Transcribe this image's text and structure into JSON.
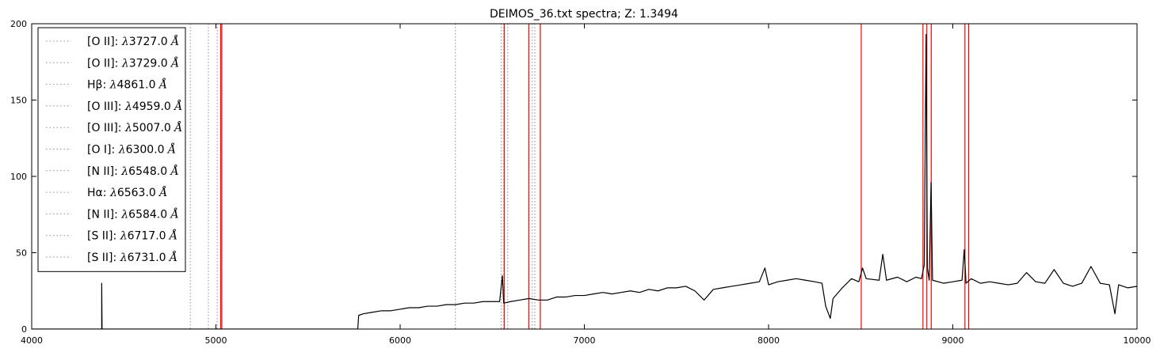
{
  "chart_data": {
    "type": "line",
    "title": "DEIMOS_36.txt spectra; Z: 1.3494",
    "xlabel": "",
    "ylabel": "",
    "xlim": [
      4000,
      10000
    ],
    "ylim": [
      0,
      200
    ],
    "x_ticks": [
      4000,
      5000,
      6000,
      7000,
      8000,
      9000,
      10000
    ],
    "y_ticks": [
      0,
      50,
      100,
      150,
      200
    ],
    "x_tick_labels": [
      "4000",
      "5000",
      "6000",
      "7000",
      "8000",
      "9000",
      "10000"
    ],
    "y_tick_labels": [
      "0",
      "50",
      "100",
      "150",
      "200"
    ],
    "grid": false,
    "legend_position": "top-left",
    "colors": {
      "spectrum": "#000000",
      "observed_lines": "#ff0000",
      "rest_lines": "#8c8c8c"
    },
    "series": [
      {
        "name": "",
        "points": [
          [
            4000,
            0
          ],
          [
            4380,
            0
          ],
          [
            4380,
            30
          ],
          [
            4382,
            0
          ],
          [
            5770,
            0
          ],
          [
            5775,
            9
          ],
          [
            5800,
            10
          ],
          [
            5850,
            11
          ],
          [
            5900,
            12
          ],
          [
            5950,
            12
          ],
          [
            6000,
            13
          ],
          [
            6050,
            14
          ],
          [
            6100,
            14
          ],
          [
            6150,
            15
          ],
          [
            6200,
            15
          ],
          [
            6250,
            16
          ],
          [
            6300,
            16
          ],
          [
            6350,
            17
          ],
          [
            6400,
            17
          ],
          [
            6450,
            18
          ],
          [
            6500,
            18
          ],
          [
            6540,
            18
          ],
          [
            6555,
            35
          ],
          [
            6562,
            17
          ],
          [
            6600,
            18
          ],
          [
            6650,
            19
          ],
          [
            6700,
            20
          ],
          [
            6750,
            19
          ],
          [
            6800,
            19
          ],
          [
            6850,
            21
          ],
          [
            6900,
            21
          ],
          [
            6950,
            22
          ],
          [
            7000,
            22
          ],
          [
            7050,
            23
          ],
          [
            7100,
            24
          ],
          [
            7150,
            23
          ],
          [
            7200,
            24
          ],
          [
            7250,
            25
          ],
          [
            7300,
            24
          ],
          [
            7350,
            26
          ],
          [
            7400,
            25
          ],
          [
            7450,
            27
          ],
          [
            7500,
            27
          ],
          [
            7550,
            28
          ],
          [
            7600,
            25
          ],
          [
            7650,
            19
          ],
          [
            7700,
            26
          ],
          [
            7750,
            27
          ],
          [
            7800,
            28
          ],
          [
            7850,
            29
          ],
          [
            7900,
            30
          ],
          [
            7950,
            31
          ],
          [
            7980,
            40
          ],
          [
            8000,
            29
          ],
          [
            8050,
            31
          ],
          [
            8100,
            32
          ],
          [
            8150,
            33
          ],
          [
            8200,
            32
          ],
          [
            8250,
            31
          ],
          [
            8290,
            30
          ],
          [
            8310,
            15
          ],
          [
            8335,
            7
          ],
          [
            8350,
            20
          ],
          [
            8400,
            27
          ],
          [
            8450,
            33
          ],
          [
            8490,
            31
          ],
          [
            8510,
            40
          ],
          [
            8530,
            33
          ],
          [
            8600,
            32
          ],
          [
            8620,
            49
          ],
          [
            8640,
            32
          ],
          [
            8700,
            34
          ],
          [
            8750,
            31
          ],
          [
            8800,
            34
          ],
          [
            8830,
            33
          ],
          [
            8845,
            42
          ],
          [
            8855,
            193
          ],
          [
            8862,
            40
          ],
          [
            8872,
            32
          ],
          [
            8882,
            96
          ],
          [
            8890,
            32
          ],
          [
            8950,
            30
          ],
          [
            9000,
            31
          ],
          [
            9050,
            32
          ],
          [
            9062,
            52
          ],
          [
            9072,
            30
          ],
          [
            9100,
            33
          ],
          [
            9150,
            30
          ],
          [
            9200,
            31
          ],
          [
            9250,
            30
          ],
          [
            9300,
            29
          ],
          [
            9350,
            30
          ],
          [
            9400,
            37
          ],
          [
            9450,
            31
          ],
          [
            9500,
            30
          ],
          [
            9550,
            39
          ],
          [
            9600,
            30
          ],
          [
            9650,
            28
          ],
          [
            9700,
            30
          ],
          [
            9750,
            41
          ],
          [
            9800,
            30
          ],
          [
            9850,
            29
          ],
          [
            9880,
            10
          ],
          [
            9900,
            29
          ],
          [
            9950,
            27
          ],
          [
            10000,
            28
          ]
        ]
      }
    ],
    "observed_line_positions": [
      5026,
      5032,
      6565,
      6699,
      6761,
      8503,
      8838,
      8859,
      8883,
      9066,
      9086
    ],
    "rest_line_positions": [
      4861,
      4959,
      5007,
      6300,
      6548,
      6563,
      6584,
      6717,
      6731
    ],
    "legend": [
      {
        "ion": "[O II]",
        "sep": ": ",
        "lambda": "λ",
        "wave": "3727.0",
        "unit": "Å"
      },
      {
        "ion": "[O II]",
        "sep": ": ",
        "lambda": "λ",
        "wave": "3729.0",
        "unit": "Å"
      },
      {
        "ion": "Hβ",
        "sep": ": ",
        "lambda": "λ",
        "wave": "4861.0",
        "unit": "Å"
      },
      {
        "ion": "[O III]",
        "sep": ": ",
        "lambda": "λ",
        "wave": "4959.0",
        "unit": "Å"
      },
      {
        "ion": "[O III]",
        "sep": ": ",
        "lambda": "λ",
        "wave": "5007.0",
        "unit": "Å"
      },
      {
        "ion": "[O I]",
        "sep": ": ",
        "lambda": "λ",
        "wave": "6300.0",
        "unit": "Å"
      },
      {
        "ion": "[N II]",
        "sep": ": ",
        "lambda": "λ",
        "wave": "6548.0",
        "unit": "Å"
      },
      {
        "ion": "Hα",
        "sep": ": ",
        "lambda": "λ",
        "wave": "6563.0",
        "unit": "Å"
      },
      {
        "ion": "[N II]",
        "sep": ": ",
        "lambda": "λ",
        "wave": "6584.0",
        "unit": "Å"
      },
      {
        "ion": "[S II]",
        "sep": ": ",
        "lambda": "λ",
        "wave": "6717.0",
        "unit": "Å"
      },
      {
        "ion": "[S II]",
        "sep": ": ",
        "lambda": "λ",
        "wave": "6731.0",
        "unit": "Å"
      }
    ]
  }
}
